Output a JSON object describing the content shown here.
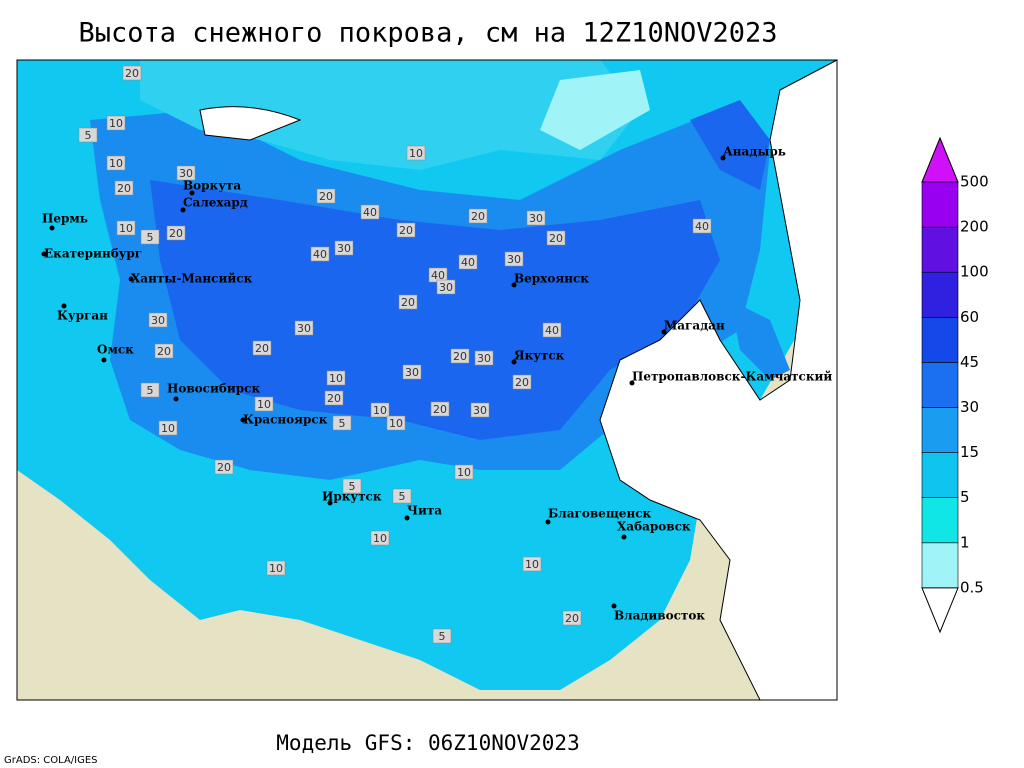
{
  "title": "Высота снежного покрова, см на 12Z10NOV2023",
  "footer": "Модель GFS: 06Z10NOV2023",
  "credit": "GrADS: COLA/IGES",
  "cities": [
    "Воркута",
    "Салехард",
    "Пермь",
    "Екатеринбург",
    "Ханты-Мансийск",
    "Курган",
    "Омск",
    "Новосибирск",
    "Красноярск",
    "Иркутск",
    "Чита",
    "Благовещенск",
    "Хабаровск",
    "Владивосток",
    "Якутск",
    "Верхоянск",
    "Магадан",
    "Петропавловск-Камчатский",
    "Анадырь"
  ],
  "contour_labels": [
    20,
    10,
    10,
    5,
    20,
    5,
    10,
    20,
    30,
    20,
    10,
    20,
    40,
    40,
    30,
    20,
    40,
    40,
    30,
    20,
    30,
    40,
    30,
    20,
    30,
    40,
    20,
    30,
    20,
    30,
    10,
    20,
    30,
    20,
    10,
    20,
    10,
    5,
    5,
    10,
    10,
    10,
    5,
    5,
    10,
    10,
    20,
    30,
    20,
    10,
    5,
    20
  ],
  "colorbar": {
    "levels": [
      0.5,
      1,
      5,
      15,
      30,
      45,
      60,
      100,
      200,
      500
    ],
    "colors": [
      "#ffffff",
      "#a0f4f8",
      "#10e6e6",
      "#10c4f0",
      "#1a9cf0",
      "#1a70f0",
      "#1448e8",
      "#3020e0",
      "#6010e0",
      "#9800f0",
      "#d010f8"
    ]
  }
}
